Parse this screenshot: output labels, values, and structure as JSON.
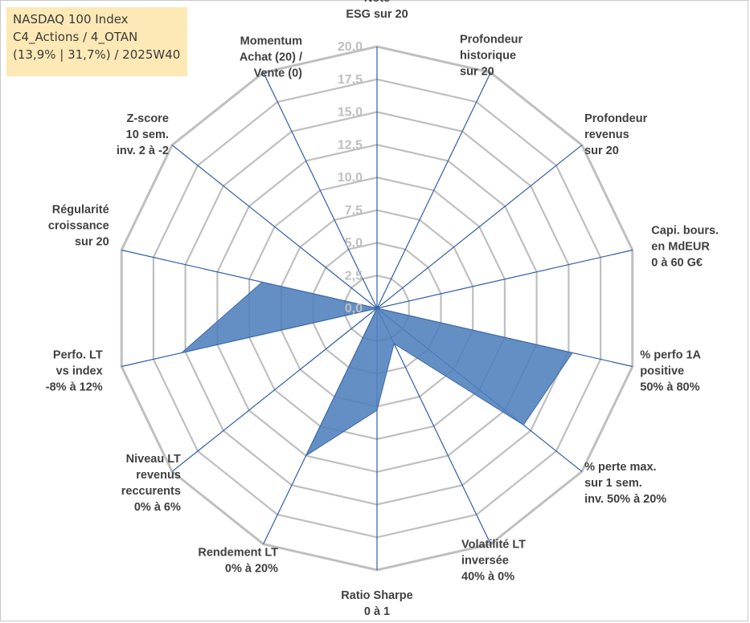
{
  "info_box": {
    "line1": "NASDAQ 100 Index",
    "line2": "C4_Actions / 4_OTAN",
    "line3": "(13,9% | 31,7%) / 2025W40"
  },
  "chart_data": {
    "type": "radar",
    "title": "",
    "range": [
      0,
      20
    ],
    "tick_values": [
      0,
      2.5,
      5,
      7.5,
      10,
      12.5,
      15,
      17.5,
      20
    ],
    "tick_labels": [
      "0,0",
      "2,5",
      "5,0",
      "7,5",
      "10,0",
      "12,5",
      "15,0",
      "17,5",
      "20,0"
    ],
    "axes": [
      {
        "label": [
          "Note",
          "ESG sur 20"
        ]
      },
      {
        "label": [
          "Profondeur",
          "historique",
          "sur 20"
        ]
      },
      {
        "label": [
          "Profondeur",
          "revenus",
          "sur 20"
        ]
      },
      {
        "label": [
          "Capi. bours.",
          "en MdEUR",
          "0 à 60 G€"
        ]
      },
      {
        "label": [
          "% perfo 1A",
          "positive",
          "50% à 80%"
        ]
      },
      {
        "label": [
          "% perte max.",
          "sur 1 sem.",
          "inv. 50% à 20%"
        ]
      },
      {
        "label": [
          "Volatilité LT",
          "inversée",
          "40% à 0%"
        ]
      },
      {
        "label": [
          "Ratio Sharpe",
          "0 à 1"
        ]
      },
      {
        "label": [
          "Rendement LT",
          "0% à 20%"
        ]
      },
      {
        "label": [
          "Niveau LT",
          "revenus",
          "reccurents",
          "0% à 6%"
        ]
      },
      {
        "label": [
          "Perfo. LT",
          "vs index",
          "-8% à 12%"
        ]
      },
      {
        "label": [
          "Régularité",
          "croissance",
          "sur 20"
        ]
      },
      {
        "label": [
          "Z-score",
          "10 sem.",
          "inv. 2 à -2"
        ]
      },
      {
        "label": [
          "Momentum",
          "Achat (20) /",
          "Vente (0)"
        ]
      }
    ],
    "series": [
      {
        "name": "NASDAQ 100 Index",
        "color": "#4f7fbd",
        "values": [
          0,
          0,
          0,
          0,
          15.3,
          14.3,
          3.0,
          7.8,
          12.5,
          0,
          15.3,
          9.0,
          0,
          0
        ]
      }
    ],
    "grid_color": "#bfbfbf",
    "axis_color": "#2f5da8"
  }
}
